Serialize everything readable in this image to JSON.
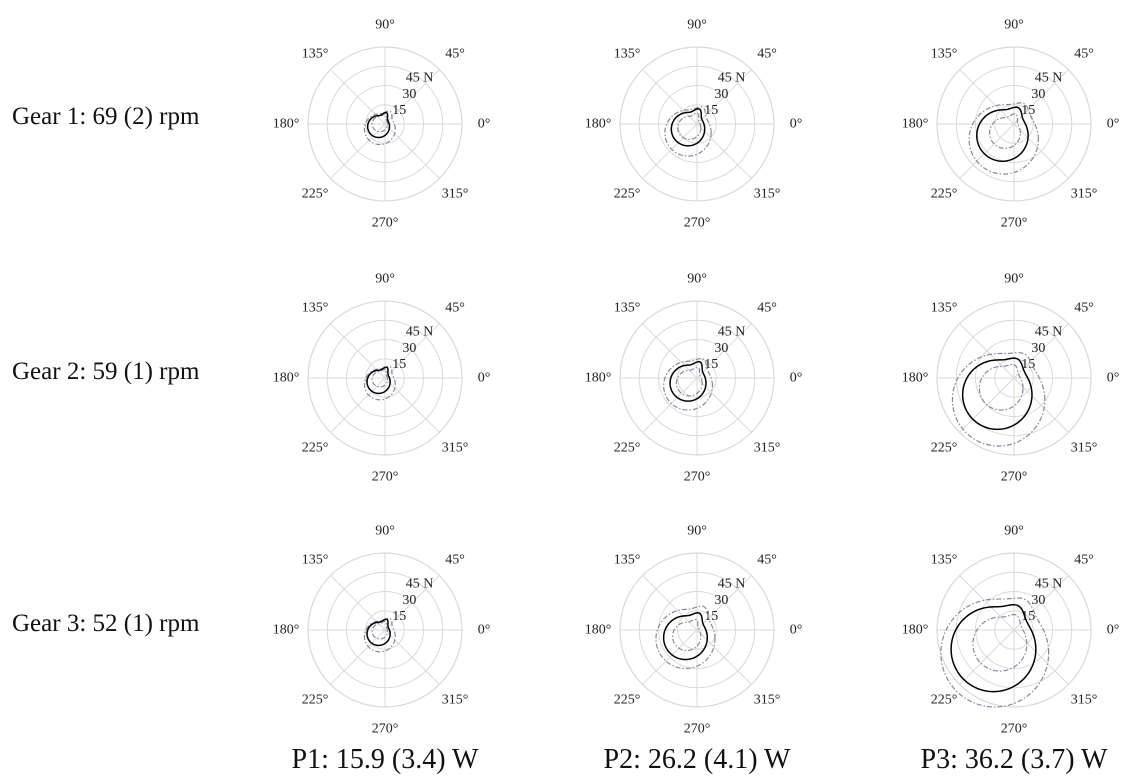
{
  "row_labels": [
    "Gear 1: 69 (2) rpm",
    "Gear 2: 59 (1) rpm",
    "Gear 3: 52 (1) rpm"
  ],
  "col_labels": [
    "P1: 15.9 (3.4) W",
    "P2: 26.2 (4.1) W",
    "P3: 36.2 (3.7) W"
  ],
  "chart_data": {
    "type": "polar-line-grid",
    "rows": 3,
    "cols": 3,
    "angle_ticks": [
      0,
      45,
      90,
      135,
      180,
      225,
      270,
      315
    ],
    "angle_tick_labels": [
      "0°",
      "45°",
      "90°",
      "135°",
      "180°",
      "225°",
      "270°",
      "315°"
    ],
    "radial_ticks": [
      15,
      30,
      45
    ],
    "radial_tick_labels": [
      "15",
      "30",
      "45 N"
    ],
    "rmax": 60,
    "grid": true,
    "colors": {
      "grid": "#d9d9d9",
      "mean": "#000000",
      "sd": "#7f8aa3"
    },
    "panels": [
      {
        "row": 0,
        "col": 0,
        "mean": {
          "x0": -5,
          "y0": -2,
          "r": 8.5,
          "lobe": 4
        },
        "outer": {
          "x0": -4,
          "y0": -4,
          "r": 12,
          "lobe": 4
        },
        "inner": {
          "x0": -4,
          "y0": 0,
          "r": 6,
          "lobe": 3
        }
      },
      {
        "row": 0,
        "col": 1,
        "mean": {
          "x0": -7,
          "y0": -4,
          "r": 13,
          "lobe": 5
        },
        "outer": {
          "x0": -7,
          "y0": -7,
          "r": 18,
          "lobe": 5
        },
        "inner": {
          "x0": -6,
          "y0": -3,
          "r": 9,
          "lobe": 4
        }
      },
      {
        "row": 0,
        "col": 2,
        "mean": {
          "x0": -9,
          "y0": -9,
          "r": 20,
          "lobe": 5
        },
        "outer": {
          "x0": -8,
          "y0": -12,
          "r": 27,
          "lobe": 5
        },
        "inner": {
          "x0": -7,
          "y0": -7,
          "r": 12,
          "lobe": 5
        }
      },
      {
        "row": 1,
        "col": 0,
        "mean": {
          "x0": -5,
          "y0": -3,
          "r": 9,
          "lobe": 4
        },
        "outer": {
          "x0": -4,
          "y0": -5,
          "r": 12,
          "lobe": 4
        },
        "inner": {
          "x0": -4,
          "y0": -1,
          "r": 6,
          "lobe": 3
        }
      },
      {
        "row": 1,
        "col": 1,
        "mean": {
          "x0": -7,
          "y0": -4,
          "r": 14,
          "lobe": 5
        },
        "outer": {
          "x0": -7,
          "y0": -6,
          "r": 19,
          "lobe": 5
        },
        "inner": {
          "x0": -6,
          "y0": -4,
          "r": 10,
          "lobe": 4
        }
      },
      {
        "row": 1,
        "col": 2,
        "mean": {
          "x0": -13,
          "y0": -13,
          "r": 27,
          "lobe": 5
        },
        "outer": {
          "x0": -12,
          "y0": -17,
          "r": 36,
          "lobe": 5
        },
        "inner": {
          "x0": -10,
          "y0": -8,
          "r": 17,
          "lobe": 4
        }
      },
      {
        "row": 2,
        "col": 0,
        "mean": {
          "x0": -5,
          "y0": -3,
          "r": 9,
          "lobe": 4
        },
        "outer": {
          "x0": -4,
          "y0": -5,
          "r": 12,
          "lobe": 4
        },
        "inner": {
          "x0": -4,
          "y0": -1,
          "r": 6,
          "lobe": 3
        }
      },
      {
        "row": 2,
        "col": 1,
        "mean": {
          "x0": -9,
          "y0": -6,
          "r": 17,
          "lobe": 5
        },
        "outer": {
          "x0": -9,
          "y0": -7,
          "r": 23,
          "lobe": 6
        },
        "inner": {
          "x0": -8,
          "y0": -5,
          "r": 11,
          "lobe": 4
        }
      },
      {
        "row": 2,
        "col": 2,
        "mean": {
          "x0": -16,
          "y0": -15,
          "r": 33,
          "lobe": 6
        },
        "outer": {
          "x0": -15,
          "y0": -18,
          "r": 42,
          "lobe": 6
        },
        "inner": {
          "x0": -11,
          "y0": -11,
          "r": 21,
          "lobe": 5
        }
      }
    ]
  }
}
